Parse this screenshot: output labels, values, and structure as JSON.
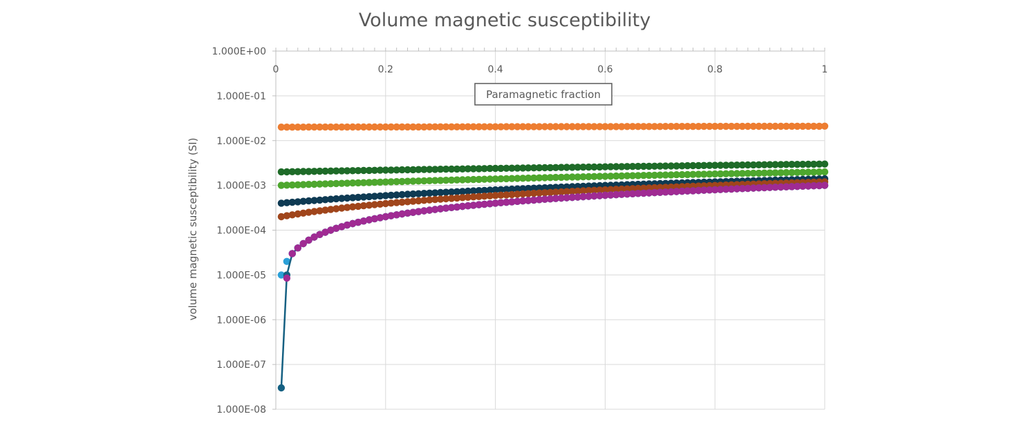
{
  "chart_data": {
    "type": "scatter",
    "title": "Volume magnetic susceptibility",
    "xlabel": "Paramagnetic fraction",
    "ylabel": "volume magnetic  susceptibility (SI)",
    "x_axis_position": "top",
    "xlim": [
      0,
      1
    ],
    "ylim": [
      1e-08,
      1
    ],
    "yscale": "log",
    "grid": true,
    "legend": "none",
    "x_ticks": [
      "0",
      "0.2",
      "0.4",
      "0.6",
      "0.8",
      "1"
    ],
    "y_ticks": [
      "1.000E+00",
      "1.000E-01",
      "1.000E-02",
      "1.000E-03",
      "1.000E-04",
      "1.000E-05",
      "1.000E-06",
      "1.000E-07",
      "1.000E-08"
    ],
    "x_start": 0.01,
    "x_step": 0.01,
    "x_end": 1.0,
    "series": [
      {
        "color": "#ED7D31",
        "connected": false,
        "start": 0.02,
        "end": 0.021,
        "endpoints": [
          [
            0.01,
            0.02
          ],
          [
            1.0,
            0.021
          ]
        ]
      },
      {
        "color": "#1E6B28",
        "connected": false,
        "start": 0.002,
        "end": 0.003,
        "endpoints": [
          [
            0.01,
            0.002
          ],
          [
            1.0,
            0.003
          ]
        ]
      },
      {
        "color": "#4EA72E",
        "connected": false,
        "start": 0.001,
        "end": 0.002,
        "endpoints": [
          [
            0.01,
            0.001
          ],
          [
            1.0,
            0.002
          ]
        ]
      },
      {
        "color": "#0E3A53",
        "connected": false,
        "start": 0.0004,
        "end": 0.0014,
        "endpoints": [
          [
            0.01,
            0.0004
          ],
          [
            1.0,
            0.0014
          ]
        ]
      },
      {
        "color": "#A0451B",
        "connected": false,
        "start": 0.0002,
        "end": 0.0012,
        "endpoints": [
          [
            0.01,
            0.0002
          ],
          [
            1.0,
            0.0012
          ]
        ]
      },
      {
        "color": "#2AA0D8",
        "connected": false,
        "start": 1.8e-05,
        "end": 0.001,
        "endpoints": [
          [
            0.01,
            1.8e-05
          ],
          [
            1.0,
            0.001
          ]
        ]
      },
      {
        "color": "#156082",
        "connected": true,
        "start": 3e-08,
        "end": 0.001,
        "endpoints": [
          [
            0.01,
            3e-08
          ],
          [
            0.02,
            1e-05
          ],
          [
            1.0,
            0.001
          ]
        ]
      },
      {
        "color": "#A02B93",
        "connected": false,
        "start": 8.5e-06,
        "end": 0.001,
        "endpoints": [
          [
            0.02,
            8.5e-06
          ],
          [
            1.0,
            0.001
          ]
        ]
      }
    ]
  }
}
